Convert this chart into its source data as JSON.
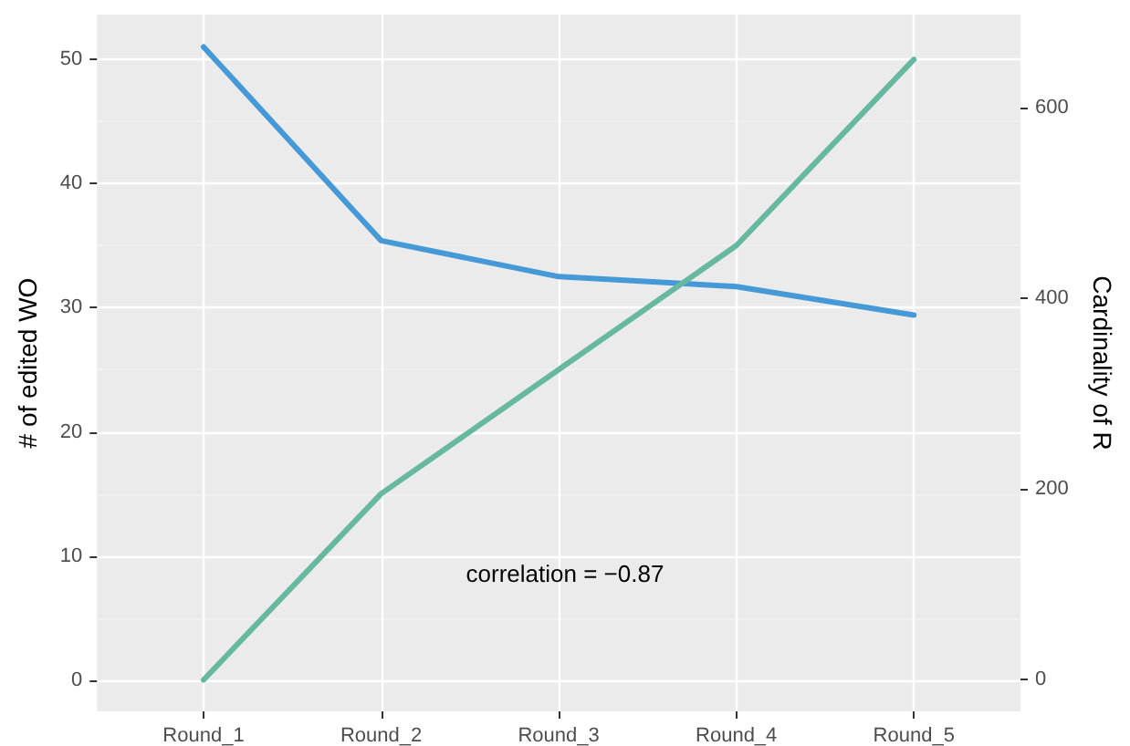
{
  "chart_data": {
    "type": "line",
    "ylabel": "# of edited WO",
    "y2label": "Cardinality of R",
    "categories": [
      "Round_1",
      "Round_2",
      "Round_3",
      "Round_4",
      "Round_5"
    ],
    "series": [
      {
        "color": "#4499d6",
        "values": [
          51,
          35.4,
          32.5,
          31.7,
          29.4
        ]
      },
      {
        "color": "#66b8a0",
        "axis": "y2",
        "values": [
          0,
          195,
          325,
          455,
          650
        ]
      }
    ],
    "ylim": [
      -2.5,
      53.6
    ],
    "yticks": [
      0,
      10,
      20,
      30,
      40,
      50
    ],
    "y2lim": [
      -33,
      697
    ],
    "y2ticks": [
      0,
      200,
      400,
      600
    ],
    "annotations": [
      "correlation = −0.87"
    ],
    "grid": true,
    "marker": "none",
    "line_style": "solid"
  }
}
